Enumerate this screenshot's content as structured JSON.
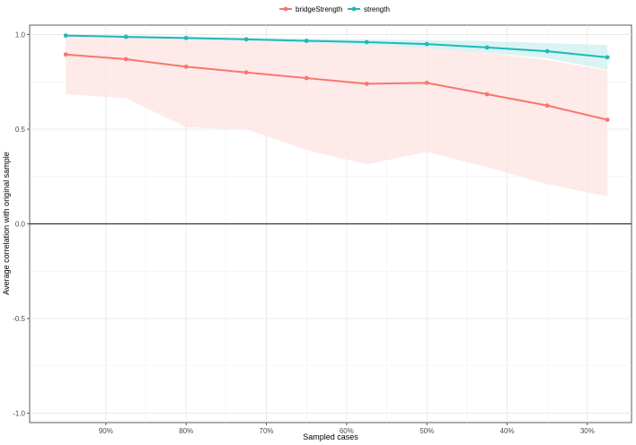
{
  "chart_data": {
    "type": "line",
    "title": "",
    "xlabel": "Sampled cases",
    "ylabel": "Average correlation with original sample",
    "ylim": [
      -1.05,
      1.05
    ],
    "y_ticks": [
      {
        "value": 1.0,
        "label": "1.0"
      },
      {
        "value": 0.5,
        "label": "0.5"
      },
      {
        "value": 0.0,
        "label": "0.0"
      },
      {
        "value": -0.5,
        "label": "-0.5"
      },
      {
        "value": -1.0,
        "label": "-1.0"
      }
    ],
    "x_reversed": true,
    "xlim": [
      0.245,
      0.995
    ],
    "x_ticks": [
      {
        "value": 0.9,
        "label": "90%"
      },
      {
        "value": 0.8,
        "label": "80%"
      },
      {
        "value": 0.7,
        "label": "70%"
      },
      {
        "value": 0.6,
        "label": "60%"
      },
      {
        "value": 0.5,
        "label": "50%"
      },
      {
        "value": 0.4,
        "label": "40%"
      },
      {
        "value": 0.3,
        "label": "30%"
      }
    ],
    "x": [
      0.95,
      0.875,
      0.8,
      0.725,
      0.65,
      0.575,
      0.5,
      0.425,
      0.35,
      0.275
    ],
    "reference_line_y": 0,
    "legend_position": "top",
    "grid": true,
    "series": [
      {
        "name": "bridgeStrength",
        "color": "#F8766D",
        "band_color": "#FDE3E1",
        "values": [
          0.895,
          0.87,
          0.83,
          0.8,
          0.77,
          0.74,
          0.745,
          0.685,
          0.625,
          0.55
        ],
        "lower": [
          0.685,
          0.665,
          0.51,
          0.5,
          0.39,
          0.315,
          0.38,
          0.3,
          0.21,
          0.145
        ],
        "upper": [
          0.995,
          0.99,
          0.98,
          0.965,
          0.955,
          0.945,
          0.93,
          0.905,
          0.865,
          0.81
        ]
      },
      {
        "name": "strength",
        "color": "#20B8B8",
        "band_color": "#CDEFEF",
        "values": [
          0.995,
          0.988,
          0.982,
          0.975,
          0.967,
          0.96,
          0.95,
          0.932,
          0.912,
          0.88
        ],
        "lower": [
          0.99,
          0.982,
          0.975,
          0.966,
          0.955,
          0.945,
          0.928,
          0.905,
          0.875,
          0.815
        ],
        "upper": [
          1.0,
          0.995,
          0.99,
          0.985,
          0.98,
          0.975,
          0.97,
          0.965,
          0.955,
          0.945
        ]
      }
    ]
  }
}
